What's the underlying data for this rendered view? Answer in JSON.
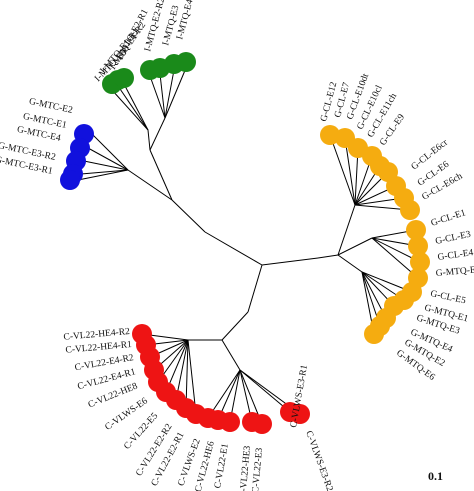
{
  "tree": {
    "scale_label": "0.1",
    "clade_colors": {
      "green": "#1a8a1a",
      "blue": "#1111dd",
      "orange": "#f5ac10",
      "red": "#ee1414"
    },
    "labels": {
      "green": [
        "I-MTQ-E2-R2",
        "I-MTQ-E3",
        "I-MTQ-E4",
        "I-MTQ-E2-R1",
        "I-MTQ-E1-R2",
        "I-MTQ-E1-R1",
        "I-MTQ-E5"
      ],
      "blue": [
        "G-MTC-E2",
        "G-MTC-E1",
        "G-MTC-E4",
        "G-MTC-E3-R2",
        "G-MTC-E3-R1"
      ],
      "orange": [
        "G-CL-E12",
        "G-CL-E7",
        "G-CL-E10dt",
        "G-CL-E10cl",
        "G-CL-E11ch",
        "G-CL-E9",
        "G-CL-E6cr",
        "G-CL-E6",
        "G-CL-E6ch",
        "G-CL-E1",
        "G-CL-E3",
        "G-CL-E4",
        "G-MTQ-E5",
        "G-CL-E5",
        "G-MTQ-E1",
        "G-MTQ-E3",
        "G-MTQ-E4",
        "G-MTQ-E2",
        "G-MTQ-E6"
      ],
      "red": [
        "C-VL22-HE4-R2",
        "C-VL22-HE4-R1",
        "C-VL22-E4-R2",
        "C-VL22-E4-R1",
        "C-VL22-HE8",
        "C-VLWS-E6",
        "C-VL22-E5",
        "C-VL22-E2-R2",
        "C-VL22-E2-R1",
        "C-VLWS-E2",
        "C-VL22-HE6",
        "C-VL22-E1",
        "C-VL22-HE3",
        "C-VL22-E3",
        "C-VLWS-E3-R1",
        "C-VLWS-E3-R2"
      ]
    }
  }
}
